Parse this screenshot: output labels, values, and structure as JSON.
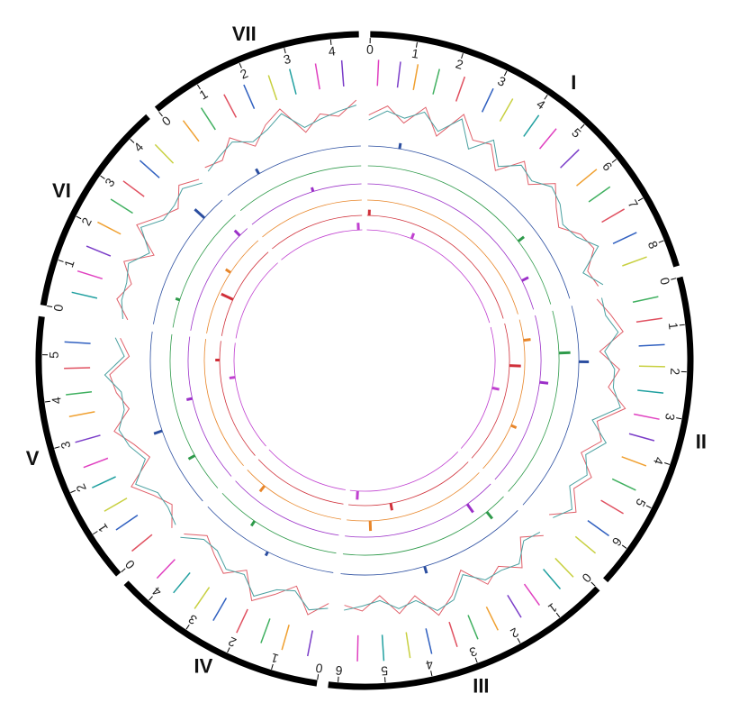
{
  "chart_data": {
    "type": "circos",
    "feature_colors": [
      "#e040c0",
      "#7a3cc8",
      "#f0a030",
      "#40b060",
      "#e05060",
      "#3060c0",
      "#c8d040",
      "#20a0a0"
    ],
    "line_colors": [
      "#e0606a",
      "#4aa0a0"
    ],
    "line_ylim": [
      0,
      1
    ],
    "chromosomes": [
      {
        "label": "I",
        "length": 8.6,
        "ticks": [
          0,
          1,
          2,
          3,
          4,
          5,
          6,
          7,
          8
        ],
        "x": [
          0,
          0.5,
          1,
          1.5,
          2,
          2.5,
          3,
          3.5,
          4,
          4.5,
          5,
          5.5,
          6,
          6.5,
          7,
          7.5,
          8,
          8.5
        ],
        "line_a": [
          0.5,
          0.7,
          0.4,
          0.8,
          0.3,
          0.9,
          0.5,
          0.6,
          0.2,
          0.7,
          0.4,
          0.8,
          0.5,
          0.3,
          0.6,
          0.7,
          0.4,
          0.5
        ],
        "line_b": [
          0.4,
          0.6,
          0.5,
          0.7,
          0.4,
          0.8,
          0.3,
          0.7,
          0.3,
          0.6,
          0.5,
          0.7,
          0.6,
          0.4,
          0.5,
          0.8,
          0.3,
          0.6
        ],
        "features": [
          0.2,
          0.7,
          1.1,
          1.6,
          2.2,
          2.9,
          3.4,
          4.1,
          4.6,
          5.3,
          5.9,
          6.4,
          7.0,
          7.6,
          8.2
        ]
      },
      {
        "label": "II",
        "length": 6.8,
        "ticks": [
          0,
          1,
          2,
          3,
          4,
          5,
          6
        ],
        "x": [
          0,
          0.5,
          1,
          1.5,
          2,
          2.5,
          3,
          3.5,
          4,
          4.5,
          5,
          5.5,
          6,
          6.5
        ],
        "line_a": [
          0.4,
          0.6,
          0.8,
          0.3,
          0.7,
          0.5,
          0.9,
          0.4,
          0.6,
          0.3,
          0.7,
          0.5,
          0.8,
          0.4
        ],
        "line_b": [
          0.5,
          0.5,
          0.7,
          0.4,
          0.6,
          0.6,
          0.8,
          0.3,
          0.7,
          0.4,
          0.6,
          0.4,
          0.7,
          0.5
        ],
        "features": [
          0.3,
          0.8,
          1.4,
          1.9,
          2.5,
          3.1,
          3.6,
          4.2,
          4.8,
          5.4,
          6.0,
          6.5
        ]
      },
      {
        "label": "III",
        "length": 6.2,
        "ticks": [
          0,
          1,
          2,
          3,
          4,
          5,
          6
        ],
        "x": [
          0,
          0.5,
          1,
          1.5,
          2,
          2.5,
          3,
          3.5,
          4,
          4.5,
          5,
          5.5,
          6
        ],
        "line_a": [
          0.6,
          0.3,
          0.8,
          0.5,
          0.7,
          0.2,
          0.6,
          0.9,
          0.4,
          0.7,
          0.3,
          0.6,
          0.5
        ],
        "line_b": [
          0.5,
          0.4,
          0.7,
          0.6,
          0.6,
          0.3,
          0.7,
          0.8,
          0.5,
          0.6,
          0.4,
          0.5,
          0.6
        ],
        "features": [
          0.2,
          0.6,
          1.2,
          1.7,
          2.3,
          2.8,
          3.3,
          3.9,
          4.4,
          5.0,
          5.6
        ]
      },
      {
        "label": "IV",
        "length": 4.6,
        "ticks": [
          0,
          1,
          2,
          3,
          4
        ],
        "x": [
          0,
          0.5,
          1,
          1.5,
          2,
          2.5,
          3,
          3.5,
          4,
          4.5
        ],
        "line_a": [
          0.5,
          0.8,
          0.3,
          0.6,
          0.9,
          0.4,
          0.7,
          0.5,
          0.3,
          0.6
        ],
        "line_b": [
          0.6,
          0.7,
          0.4,
          0.5,
          0.8,
          0.5,
          0.6,
          0.4,
          0.4,
          0.7
        ],
        "features": [
          0.3,
          0.9,
          1.4,
          2.0,
          2.6,
          3.1,
          3.7,
          4.2
        ]
      },
      {
        "label": "V",
        "length": 5.8,
        "ticks": [
          0,
          1,
          2,
          3,
          4,
          5
        ],
        "x": [
          0,
          0.5,
          1,
          1.5,
          2,
          2.5,
          3,
          3.5,
          4,
          4.5,
          5,
          5.5
        ],
        "line_a": [
          0.7,
          0.4,
          0.6,
          0.9,
          0.3,
          0.5,
          0.8,
          0.4,
          0.6,
          0.7,
          0.3,
          0.5
        ],
        "line_b": [
          0.6,
          0.5,
          0.5,
          0.8,
          0.4,
          0.6,
          0.7,
          0.5,
          0.5,
          0.8,
          0.4,
          0.6
        ],
        "features": [
          0.2,
          0.8,
          1.3,
          1.9,
          2.4,
          3.0,
          3.6,
          4.1,
          4.7,
          5.3
        ]
      },
      {
        "label": "VI",
        "length": 4.6,
        "ticks": [
          0,
          1,
          2,
          3,
          4
        ],
        "x": [
          0,
          0.5,
          1,
          1.5,
          2,
          2.5,
          3,
          3.5,
          4,
          4.5
        ],
        "line_a": [
          0.4,
          0.7,
          0.5,
          0.8,
          0.3,
          0.9,
          0.6,
          0.4,
          0.7,
          0.5
        ],
        "line_b": [
          0.5,
          0.6,
          0.6,
          0.7,
          0.4,
          0.8,
          0.5,
          0.5,
          0.6,
          0.4
        ],
        "features": [
          0.4,
          0.9,
          1.5,
          2.1,
          2.7,
          3.2,
          3.8,
          4.3
        ]
      },
      {
        "label": "VII",
        "length": 4.6,
        "ticks": [
          0,
          1,
          2,
          3,
          4
        ],
        "x": [
          0,
          0.5,
          1,
          1.5,
          2,
          2.5,
          3,
          3.5,
          4,
          4.5
        ],
        "line_a": [
          0.6,
          0.5,
          0.8,
          0.4,
          0.7,
          0.9,
          0.3,
          0.6,
          0.5,
          0.8
        ],
        "line_b": [
          0.5,
          0.6,
          0.7,
          0.5,
          0.6,
          0.8,
          0.4,
          0.5,
          0.6,
          0.7
        ],
        "features": [
          0.3,
          0.8,
          1.4,
          1.9,
          2.5,
          3.0,
          3.6,
          4.2
        ]
      }
    ],
    "rings": [
      {
        "color": "#2b4ea0",
        "spikes": [
          [
            "I",
            1.0,
            0.4
          ],
          [
            "II",
            1.8,
            0.7
          ],
          [
            "III",
            3.5,
            0.5
          ],
          [
            "IV",
            2.2,
            0.3
          ],
          [
            "V",
            2.6,
            0.6
          ],
          [
            "VI",
            3.8,
            0.9
          ],
          [
            "VII",
            1.2,
            0.4
          ]
        ]
      },
      {
        "color": "#2e9a4a",
        "spikes": [
          [
            "I",
            6.1,
            0.5
          ],
          [
            "II",
            1.5,
            0.8
          ],
          [
            "III",
            0.8,
            0.6
          ],
          [
            "IV",
            3.1,
            0.4
          ],
          [
            "V",
            1.4,
            0.5
          ],
          [
            "VI",
            1.0,
            0.3
          ]
        ]
      },
      {
        "color": "#9b30c8",
        "spikes": [
          [
            "I",
            7.4,
            0.5
          ],
          [
            "II",
            2.6,
            0.6
          ],
          [
            "III",
            1.2,
            0.7
          ],
          [
            "V",
            3.4,
            0.4
          ],
          [
            "VI",
            4.2,
            0.5
          ],
          [
            "VII",
            2.7,
            0.3
          ]
        ]
      },
      {
        "color": "#e8862a",
        "spikes": [
          [
            "II",
            0.9,
            0.5
          ],
          [
            "II",
            4.6,
            0.4
          ],
          [
            "III",
            5.2,
            0.7
          ],
          [
            "IV",
            3.6,
            0.5
          ],
          [
            "VI",
            2.8,
            0.4
          ]
        ]
      },
      {
        "color": "#d0303a",
        "spikes": [
          [
            "I",
            0.1,
            0.4
          ],
          [
            "II",
            2.0,
            0.8
          ],
          [
            "III",
            4.2,
            0.5
          ],
          [
            "V",
            4.9,
            0.3
          ],
          [
            "VI",
            1.8,
            0.9
          ]
        ]
      },
      {
        "color": "#c040d0",
        "spikes": [
          [
            "I",
            2.4,
            0.4
          ],
          [
            "II",
            3.2,
            0.5
          ],
          [
            "III",
            5.8,
            0.6
          ],
          [
            "V",
            4.0,
            0.4
          ],
          [
            "VII",
            4.4,
            0.5
          ]
        ]
      }
    ]
  }
}
